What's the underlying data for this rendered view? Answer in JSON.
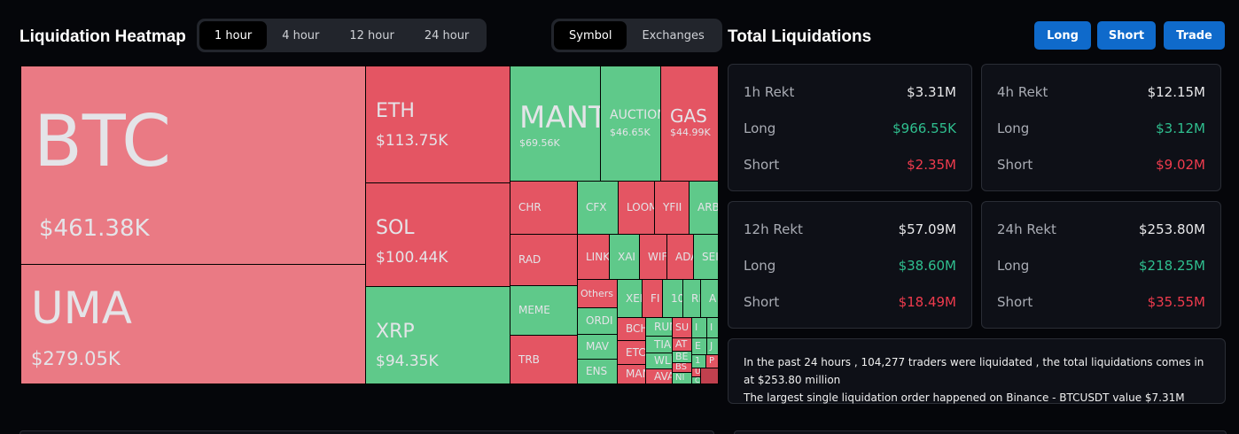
{
  "heatmap": {
    "title": "Liquidation Heatmap",
    "time_tabs": [
      "1 hour",
      "4 hour",
      "12 hour",
      "24 hour"
    ],
    "active_time": "1 hour",
    "view_tabs": [
      "Symbol",
      "Exchanges"
    ],
    "active_view": "Symbol",
    "colors": {
      "up": "#5fc98a",
      "down": "#e45563",
      "down_light": "#ea7a84",
      "down_dark": "#c0404e"
    },
    "cells": [
      {
        "symbol": "BTC",
        "value": "$461.38K",
        "color": "down_light"
      },
      {
        "symbol": "UMA",
        "value": "$279.05K",
        "color": "down_light"
      },
      {
        "symbol": "ETH",
        "value": "$113.75K",
        "color": "down"
      },
      {
        "symbol": "SOL",
        "value": "$100.44K",
        "color": "down"
      },
      {
        "symbol": "XRP",
        "value": "$94.35K",
        "color": "up"
      },
      {
        "symbol": "MANTA",
        "value": "$69.56K",
        "color": "up"
      },
      {
        "symbol": "AUCTION",
        "value": "$46.65K",
        "color": "up"
      },
      {
        "symbol": "GAS",
        "value": "$44.99K",
        "color": "down"
      },
      {
        "symbol": "CHR",
        "color": "down"
      },
      {
        "symbol": "RAD",
        "color": "down"
      },
      {
        "symbol": "MEME",
        "color": "up"
      },
      {
        "symbol": "TRB",
        "color": "down"
      },
      {
        "symbol": "CFX",
        "color": "up"
      },
      {
        "symbol": "LOOM",
        "color": "down"
      },
      {
        "symbol": "YFII",
        "color": "down"
      },
      {
        "symbol": "ARB",
        "color": "up"
      },
      {
        "symbol": "LINK",
        "color": "down"
      },
      {
        "symbol": "XAI",
        "color": "up"
      },
      {
        "symbol": "WIF",
        "color": "down"
      },
      {
        "symbol": "ADA",
        "color": "down"
      },
      {
        "symbol": "SEI",
        "color": "up"
      },
      {
        "symbol": "Others",
        "color": "down"
      },
      {
        "symbol": "ORDI",
        "color": "up"
      },
      {
        "symbol": "MAV",
        "color": "up"
      },
      {
        "symbol": "ENS",
        "color": "up"
      },
      {
        "symbol": "XEM",
        "color": "up"
      },
      {
        "symbol": "FI",
        "color": "down"
      },
      {
        "symbol": "10",
        "color": "up"
      },
      {
        "symbol": "RI",
        "color": "up"
      },
      {
        "symbol": "A",
        "color": "up"
      },
      {
        "symbol": "BCH",
        "color": "down"
      },
      {
        "symbol": "ETC",
        "color": "down"
      },
      {
        "symbol": "MAN",
        "color": "down"
      },
      {
        "symbol": "RUN",
        "color": "up"
      },
      {
        "symbol": "TIA",
        "color": "up"
      },
      {
        "symbol": "WLD",
        "color": "up"
      },
      {
        "symbol": "AVA",
        "color": "down"
      },
      {
        "symbol": "SU",
        "color": "down"
      },
      {
        "symbol": "AT",
        "color": "down"
      },
      {
        "symbol": "BE",
        "color": "up"
      },
      {
        "symbol": "BS",
        "color": "down"
      },
      {
        "symbol": "NI",
        "color": "up"
      },
      {
        "symbol": "I",
        "color": "up"
      },
      {
        "symbol": "I",
        "color": "up"
      },
      {
        "symbol": "E",
        "color": "up"
      },
      {
        "symbol": "J",
        "color": "up"
      },
      {
        "symbol": "1",
        "color": "up"
      },
      {
        "symbol": "P",
        "color": "down"
      },
      {
        "symbol": "U",
        "color": "down"
      },
      {
        "symbol": "C",
        "color": "up"
      },
      {
        "symbol": "",
        "color": "down_dark"
      }
    ]
  },
  "totals": {
    "title": "Total Liquidations",
    "buttons": [
      "Long",
      "Short",
      "Trade"
    ],
    "cards": [
      {
        "label": "1h Rekt",
        "total": "$3.31M",
        "long_label": "Long",
        "long": "$966.55K",
        "short_label": "Short",
        "short": "$2.35M"
      },
      {
        "label": "4h Rekt",
        "total": "$12.15M",
        "long_label": "Long",
        "long": "$3.12M",
        "short_label": "Short",
        "short": "$9.02M"
      },
      {
        "label": "12h Rekt",
        "total": "$57.09M",
        "long_label": "Long",
        "long": "$38.60M",
        "short_label": "Short",
        "short": "$18.49M"
      },
      {
        "label": "24h Rekt",
        "total": "$253.80M",
        "long_label": "Long",
        "long": "$218.25M",
        "short_label": "Short",
        "short": "$35.55M"
      }
    ],
    "summary": [
      "In the past 24 hours , 104,277 traders were liquidated , the total liquidations comes in at $253.80 million",
      "The largest single liquidation order happened on Binance - BTCUSDT value $7.31M"
    ]
  }
}
